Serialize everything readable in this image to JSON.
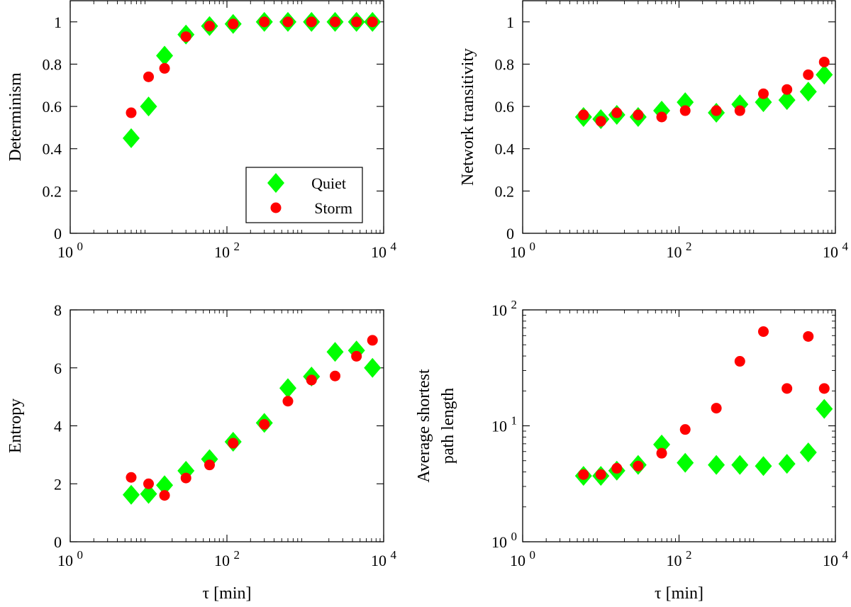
{
  "colors": {
    "quiet": "#00ff00",
    "storm": "#ff0000"
  },
  "legend": {
    "quiet_label": "Quiet",
    "storm_label": "Storm"
  },
  "chart_data": [
    {
      "id": "determinism",
      "type": "scatter",
      "xscale": "log",
      "xlim": [
        1,
        10000
      ],
      "xticks": [
        {
          "v": 1,
          "base": "10",
          "exp": "0"
        },
        {
          "v": 100,
          "base": "10",
          "exp": "2"
        },
        {
          "v": 10000,
          "base": "10",
          "exp": "4"
        }
      ],
      "yscale": "linear",
      "ylim": [
        0,
        1.1
      ],
      "yticks": [
        {
          "v": 0,
          "label": "0"
        },
        {
          "v": 0.2,
          "label": "0.2"
        },
        {
          "v": 0.4,
          "label": "0.4"
        },
        {
          "v": 0.6,
          "label": "0.6"
        },
        {
          "v": 0.8,
          "label": "0.8"
        },
        {
          "v": 1,
          "label": "1"
        }
      ],
      "ylabel": [
        "Determinism"
      ],
      "xlabel": "",
      "legend": "bottom-right",
      "x": [
        6,
        10,
        16,
        30,
        60,
        120,
        300,
        600,
        1200,
        2400,
        4500,
        7200
      ],
      "series": [
        {
          "name": "Quiet",
          "values": [
            0.45,
            0.6,
            0.84,
            0.94,
            0.98,
            0.99,
            1.0,
            1.0,
            1.0,
            1.0,
            1.0,
            1.0
          ]
        },
        {
          "name": "Storm",
          "values": [
            0.57,
            0.74,
            0.78,
            0.93,
            0.98,
            0.99,
            1.0,
            1.0,
            1.0,
            1.0,
            1.0,
            1.0
          ]
        }
      ]
    },
    {
      "id": "transitivity",
      "type": "scatter",
      "xscale": "log",
      "xlim": [
        1,
        10000
      ],
      "xticks": [
        {
          "v": 1,
          "base": "10",
          "exp": "0"
        },
        {
          "v": 100,
          "base": "10",
          "exp": "2"
        },
        {
          "v": 10000,
          "base": "10",
          "exp": "4"
        }
      ],
      "yscale": "linear",
      "ylim": [
        0,
        1.1
      ],
      "yticks": [
        {
          "v": 0,
          "label": "0"
        },
        {
          "v": 0.2,
          "label": "0.2"
        },
        {
          "v": 0.4,
          "label": "0.4"
        },
        {
          "v": 0.6,
          "label": "0.6"
        },
        {
          "v": 0.8,
          "label": "0.8"
        },
        {
          "v": 1,
          "label": "1"
        }
      ],
      "ylabel": [
        "Network transitivity"
      ],
      "xlabel": "",
      "x": [
        6,
        10,
        16,
        30,
        60,
        120,
        300,
        600,
        1200,
        2400,
        4500,
        7200
      ],
      "series": [
        {
          "name": "Quiet",
          "values": [
            0.55,
            0.54,
            0.56,
            0.55,
            0.58,
            0.62,
            0.57,
            0.61,
            0.62,
            0.63,
            0.67,
            0.75
          ]
        },
        {
          "name": "Storm",
          "values": [
            0.56,
            0.53,
            0.57,
            0.56,
            0.55,
            0.58,
            0.58,
            0.58,
            0.66,
            0.68,
            0.75,
            0.81
          ]
        }
      ]
    },
    {
      "id": "entropy",
      "type": "scatter",
      "xscale": "log",
      "xlim": [
        1,
        10000
      ],
      "xticks": [
        {
          "v": 1,
          "base": "10",
          "exp": "0"
        },
        {
          "v": 100,
          "base": "10",
          "exp": "2"
        },
        {
          "v": 10000,
          "base": "10",
          "exp": "4"
        }
      ],
      "yscale": "linear",
      "ylim": [
        0,
        8
      ],
      "yticks": [
        {
          "v": 0,
          "label": "0"
        },
        {
          "v": 2,
          "label": "2"
        },
        {
          "v": 4,
          "label": "4"
        },
        {
          "v": 6,
          "label": "6"
        },
        {
          "v": 8,
          "label": "8"
        }
      ],
      "ylabel": [
        "Entropy"
      ],
      "xlabel": "τ [min]",
      "x": [
        6,
        10,
        16,
        30,
        60,
        120,
        300,
        600,
        1200,
        2400,
        4500,
        7200
      ],
      "series": [
        {
          "name": "Quiet",
          "values": [
            1.62,
            1.65,
            1.95,
            2.45,
            2.85,
            3.45,
            4.1,
            5.3,
            5.7,
            6.55,
            6.6,
            6.0
          ]
        },
        {
          "name": "Storm",
          "values": [
            2.22,
            2.0,
            1.6,
            2.2,
            2.65,
            3.4,
            4.05,
            4.85,
            5.58,
            5.72,
            6.4,
            6.95
          ]
        }
      ]
    },
    {
      "id": "path-length",
      "type": "scatter",
      "xscale": "log",
      "xlim": [
        1,
        10000
      ],
      "xticks": [
        {
          "v": 1,
          "base": "10",
          "exp": "0"
        },
        {
          "v": 100,
          "base": "10",
          "exp": "2"
        },
        {
          "v": 10000,
          "base": "10",
          "exp": "4"
        }
      ],
      "yscale": "log",
      "ylim": [
        1,
        100
      ],
      "yticks": [
        {
          "v": 1,
          "base": "10",
          "exp": "0"
        },
        {
          "v": 10,
          "base": "10",
          "exp": "1"
        },
        {
          "v": 100,
          "base": "10",
          "exp": "2"
        }
      ],
      "ylabel": [
        "Average shortest",
        "path length"
      ],
      "xlabel": "τ [min]",
      "x": [
        6,
        10,
        16,
        30,
        60,
        120,
        300,
        600,
        1200,
        2400,
        4500,
        7200
      ],
      "series": [
        {
          "name": "Quiet",
          "values": [
            3.7,
            3.7,
            4.1,
            4.6,
            6.9,
            4.8,
            4.6,
            4.6,
            4.5,
            4.7,
            5.9,
            14.0
          ]
        },
        {
          "name": "Storm",
          "values": [
            3.8,
            3.8,
            4.3,
            4.5,
            5.8,
            9.3,
            14.2,
            36.0,
            65.0,
            21.0,
            59.0,
            21.0
          ]
        }
      ]
    }
  ]
}
